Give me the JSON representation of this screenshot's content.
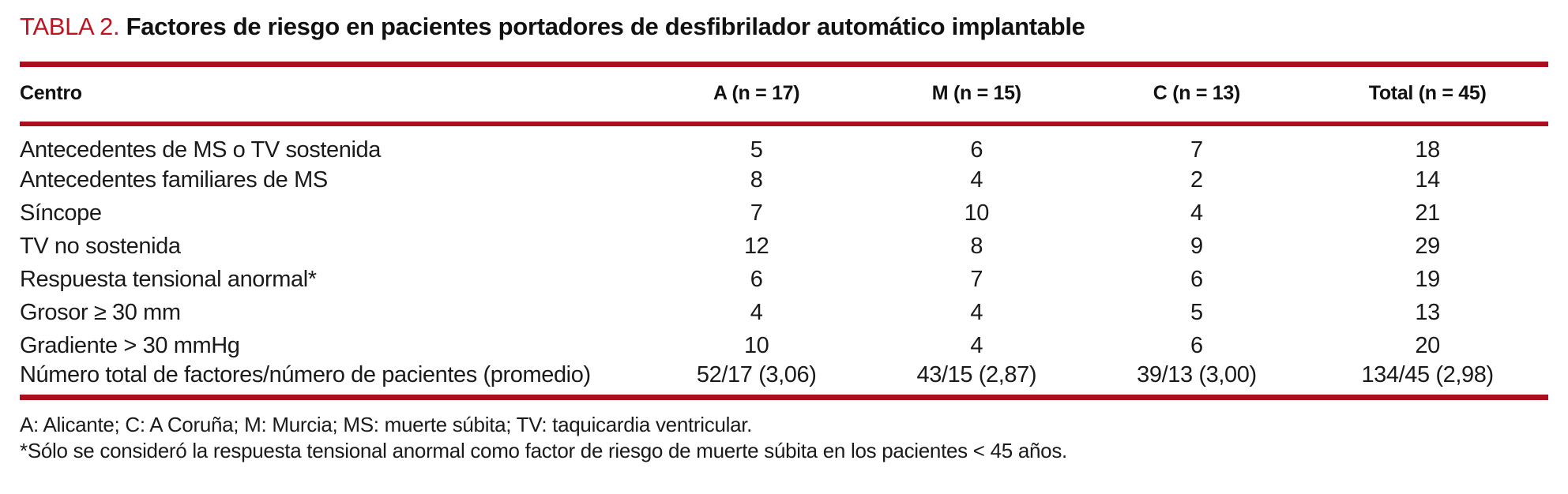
{
  "accent_color": "#ab0f1e",
  "label_color": "#be1420",
  "table": {
    "label": "TABLA 2.",
    "title": "Factores de riesgo en pacientes portadores de desfibrilador automático implantable",
    "columns": {
      "centro": "Centro",
      "a": "A (n = 17)",
      "m": "M (n = 15)",
      "c": "C (n = 13)",
      "total": "Total (n = 45)"
    },
    "rows": [
      {
        "label": "Antecedentes de MS o TV sostenida",
        "values": [
          "5",
          "6",
          "7",
          "18"
        ]
      },
      {
        "label": "Antecedentes familiares de MS",
        "values": [
          "8",
          "4",
          "2",
          "14"
        ]
      },
      {
        "label": "Síncope",
        "values": [
          "7",
          "10",
          "4",
          "21"
        ]
      },
      {
        "label": "TV no sostenida",
        "values": [
          "12",
          "8",
          "9",
          "29"
        ]
      },
      {
        "label": "Respuesta tensional anormal*",
        "values": [
          "6",
          "7",
          "6",
          "19"
        ]
      },
      {
        "label": "Grosor ≥ 30 mm",
        "values": [
          "4",
          "4",
          "5",
          "13"
        ]
      },
      {
        "label": "Gradiente > 30 mmHg",
        "values": [
          "10",
          "4",
          "6",
          "20"
        ]
      },
      {
        "label": "Número total de factores/número de pacientes (promedio)",
        "values": [
          "52/17 (3,06)",
          "43/15 (2,87)",
          "39/13 (3,00)",
          "134/45 (2,98)"
        ]
      }
    ],
    "footnotes": [
      "A: Alicante; C: A Coruña; M: Murcia; MS: muerte súbita; TV: taquicardia ventricular.",
      "*Sólo se consideró la respuesta tensional anormal como factor de riesgo de muerte súbita en los pacientes < 45 años."
    ]
  }
}
